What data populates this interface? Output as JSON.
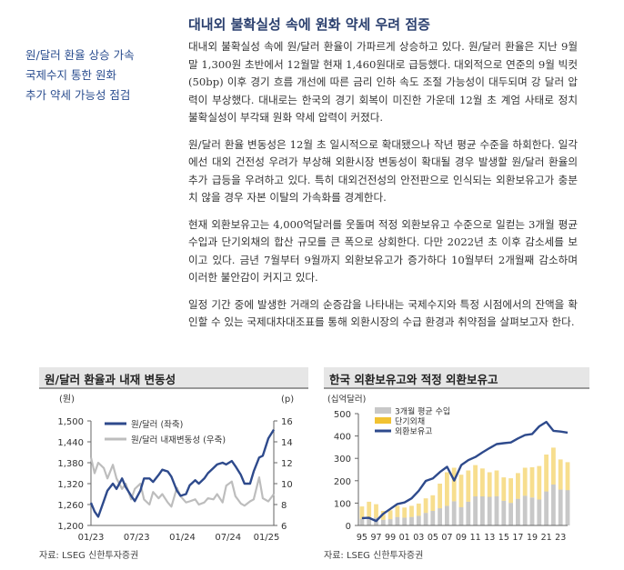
{
  "sidebar": {
    "lines": [
      "원/달러 환율 상승 가속",
      "국제수지 통한 원화",
      "추가 약세 가능성 점검"
    ]
  },
  "title": "대내외 불확실성 속에 원화 약세 우려 점증",
  "paragraphs": [
    "대내외 불확실성 속에 원/달러 환율이 가파르게 상승하고 있다. 원/달러 환율은 지난 9월말 1,300원 초반에서 12월말 현재 1,460원대로 급등했다. 대외적으로 연준의 9월 빅컷(50bp) 이후 경기 흐름 개선에 따른 금리 인하 속도 조절 가능성이 대두되며 강 달러 압력이 부상했다. 대내로는 한국의 경기 회복이 미진한 가운데 12월 초 계엄 사태로 정치 불확실성이 부각돼 원화 약세 압력이 커졌다.",
    "원/달러 환율 변동성은 12월 초 일시적으로 확대됐으나 작년 평균 수준을 하회한다. 일각에선 대외 건전성 우려가 부상해 외환시장 변동성이 확대될 경우 발생할 원/달러 환율의 추가 급등을 우려하고 있다. 특히 대외건전성의 안전판으로 인식되는 외환보유고가 충분치 않을 경우 자본 이탈의 가속화를 경계한다.",
    "현재 외환보유고는 4,000억달러를 웃돌며 적정 외환보유고 수준으로 일컫는 3개월 평균 수입과 단기외채의 합산 규모를 큰 폭으로 상회한다. 다만 2022년 초 이후 감소세를 보이고 있다. 금년 7월부터 9월까지 외환보유고가 증가하다 10월부터 2개월째 감소하며 이러한 불안감이 커지고 있다.",
    "일정 기간 중에 발생한 거래의 순증감을 나타내는 국제수지와 특정 시점에서의 잔액을 확인할 수 있는 국제대차대조표를 통해 외환시장의 수급 환경과 취약점을 살펴보고자 한다."
  ],
  "chart_left": {
    "title": "원/달러 환율과 내재 변동성",
    "source": "자료: LSEG 신한투자증권"
  },
  "chart_right": {
    "title": "한국 외환보유고와 적정 외환보유고",
    "source": "자료: LSEG 신한투자증권"
  },
  "chart_data": [
    {
      "type": "line",
      "title": "원/달러 환율과 내재 변동성",
      "y_left_unit": "(원)",
      "y_right_unit": "(p)",
      "ylim_left": [
        1200,
        1500
      ],
      "ylim_right": [
        6,
        16
      ],
      "yticks_left": [
        "1,200",
        "1,260",
        "1,320",
        "1,380",
        "1,440",
        "1,500"
      ],
      "yticks_right": [
        "6",
        "8",
        "10",
        "12",
        "14",
        "16"
      ],
      "xticks": [
        "01/23",
        "07/23",
        "01/24",
        "07/24",
        "01/25"
      ],
      "legend_position": "top-left",
      "series": [
        {
          "name": "원/달러 (좌축)",
          "axis": "left",
          "color": "#2e4a8c",
          "x": [
            0,
            0.02,
            0.04,
            0.07,
            0.09,
            0.12,
            0.14,
            0.17,
            0.19,
            0.22,
            0.24,
            0.27,
            0.29,
            0.32,
            0.34,
            0.37,
            0.39,
            0.42,
            0.44,
            0.47,
            0.49,
            0.52,
            0.54,
            0.57,
            0.59,
            0.62,
            0.64,
            0.67,
            0.69,
            0.72,
            0.74,
            0.77,
            0.79,
            0.82,
            0.84,
            0.87,
            0.89,
            0.92,
            0.94,
            0.97,
            1.0
          ],
          "values": [
            1265,
            1240,
            1225,
            1270,
            1300,
            1320,
            1305,
            1335,
            1310,
            1285,
            1270,
            1300,
            1335,
            1335,
            1325,
            1345,
            1360,
            1355,
            1340,
            1300,
            1285,
            1290,
            1315,
            1330,
            1320,
            1335,
            1350,
            1365,
            1375,
            1380,
            1375,
            1385,
            1370,
            1345,
            1320,
            1320,
            1355,
            1395,
            1400,
            1450,
            1475
          ]
        },
        {
          "name": "원/달러 내재변동성 (우축)",
          "axis": "right",
          "color": "#bdbdbd",
          "x": [
            0,
            0.02,
            0.04,
            0.07,
            0.09,
            0.12,
            0.14,
            0.17,
            0.19,
            0.22,
            0.24,
            0.27,
            0.29,
            0.32,
            0.34,
            0.37,
            0.39,
            0.42,
            0.44,
            0.47,
            0.49,
            0.52,
            0.54,
            0.57,
            0.59,
            0.62,
            0.64,
            0.67,
            0.69,
            0.72,
            0.74,
            0.77,
            0.79,
            0.82,
            0.84,
            0.87,
            0.89,
            0.92,
            0.94,
            0.97,
            1.0
          ],
          "values": [
            12.5,
            11.0,
            12.0,
            11.5,
            10.5,
            11.8,
            10.5,
            9.5,
            10.0,
            8.5,
            9.5,
            10.0,
            8.5,
            8.0,
            9.2,
            8.6,
            9.0,
            8.2,
            7.8,
            9.6,
            8.8,
            8.2,
            8.3,
            8.5,
            8.0,
            8.2,
            8.6,
            8.5,
            9.0,
            8.2,
            9.8,
            10.2,
            8.8,
            8.1,
            7.9,
            8.3,
            8.5,
            10.6,
            8.6,
            8.3,
            9.0
          ]
        }
      ]
    },
    {
      "type": "bar+line",
      "title": "한국 외환보유고와 적정 외환보유고",
      "y_unit": "(십억달러)",
      "ylim": [
        0,
        500
      ],
      "yticks": [
        "0",
        "100",
        "200",
        "300",
        "400",
        "500"
      ],
      "xticks": [
        "95",
        "97",
        "99",
        "01",
        "03",
        "05",
        "07",
        "09",
        "11",
        "13",
        "15",
        "17",
        "19",
        "21",
        "23"
      ],
      "legend_position": "top-left",
      "series": [
        {
          "name": "3개월 평균 수입",
          "kind": "bar",
          "color": "#c8c8c8",
          "x": [
            1995,
            1996,
            1997,
            1998,
            1999,
            2000,
            2001,
            2002,
            2003,
            2004,
            2005,
            2006,
            2007,
            2008,
            2009,
            2010,
            2011,
            2012,
            2013,
            2014,
            2015,
            2016,
            2017,
            2018,
            2019,
            2020,
            2021,
            2022,
            2023,
            2024
          ],
          "values": [
            30,
            36,
            35,
            25,
            28,
            38,
            35,
            38,
            43,
            56,
            65,
            77,
            88,
            108,
            82,
            106,
            130,
            130,
            128,
            131,
            110,
            101,
            119,
            133,
            125,
            116,
            152,
            183,
            160,
            158
          ]
        },
        {
          "name": "단기외채",
          "kind": "bar",
          "color": "#f1c232",
          "x": [
            1995,
            1996,
            1997,
            1998,
            1999,
            2000,
            2001,
            2002,
            2003,
            2004,
            2005,
            2006,
            2007,
            2008,
            2009,
            2010,
            2011,
            2012,
            2013,
            2014,
            2015,
            2016,
            2017,
            2018,
            2019,
            2020,
            2021,
            2022,
            2023,
            2024
          ],
          "values": [
            55,
            70,
            60,
            40,
            40,
            50,
            45,
            50,
            55,
            65,
            70,
            110,
            150,
            150,
            145,
            140,
            140,
            125,
            110,
            115,
            105,
            110,
            115,
            125,
            135,
            150,
            165,
            165,
            135,
            125
          ]
        },
        {
          "name": "외환보유고",
          "kind": "line",
          "color": "#2e4a8c",
          "x": [
            1995,
            1996,
            1997,
            1998,
            1999,
            2000,
            2001,
            2002,
            2003,
            2004,
            2005,
            2006,
            2007,
            2008,
            2009,
            2010,
            2011,
            2012,
            2013,
            2014,
            2015,
            2016,
            2017,
            2018,
            2019,
            2020,
            2021,
            2022,
            2023,
            2024
          ],
          "values": [
            33,
            34,
            20,
            52,
            74,
            96,
            103,
            121,
            155,
            199,
            210,
            239,
            262,
            201,
            270,
            292,
            306,
            327,
            346,
            364,
            368,
            371,
            389,
            404,
            409,
            443,
            463,
            423,
            420,
            415
          ]
        }
      ]
    }
  ]
}
